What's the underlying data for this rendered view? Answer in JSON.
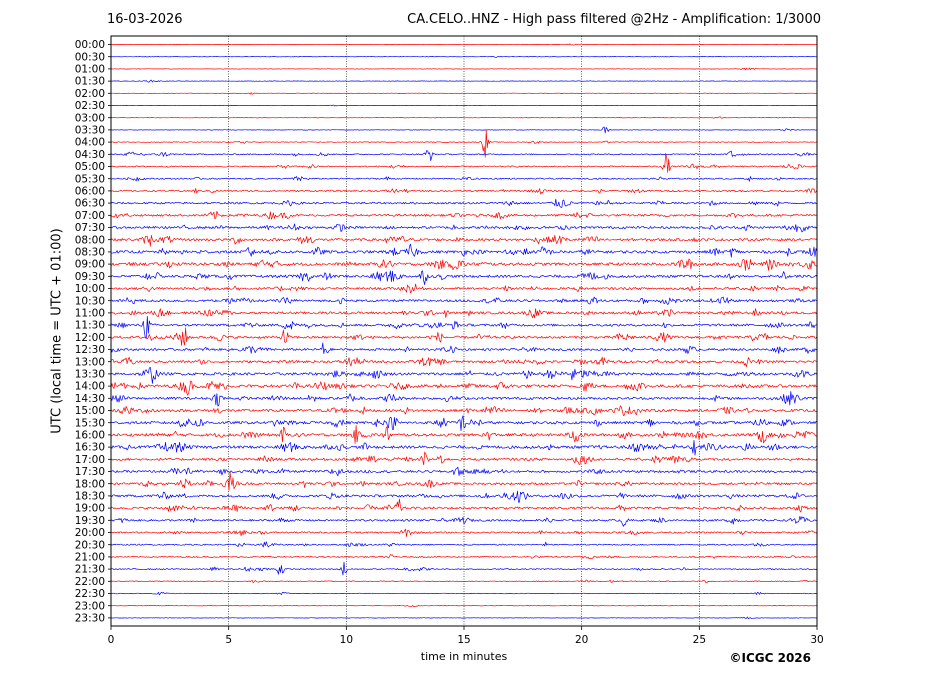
{
  "header": {
    "date": "16-03-2026",
    "title": "CA.CELO..HNZ - High pass filtered @2Hz - Amplification: 1/3000"
  },
  "footer": {
    "copyright": "©ICGC 2026"
  },
  "colors": {
    "blue": "#0000ff",
    "red": "#ff0000",
    "grid": "#000000"
  },
  "chart_data": {
    "type": "line",
    "title": "CA.CELO..HNZ - High pass filtered @2Hz - Amplification: 1/3000",
    "xlabel": "time in minutes",
    "ylabel": "UTC (local time = UTC + 01:00)",
    "xlim": [
      0,
      30
    ],
    "xticks": [
      0,
      5,
      10,
      15,
      20,
      25,
      30
    ],
    "vertical_gridlines_at": [
      5,
      10,
      15,
      20,
      25
    ],
    "grid": "dotted vertical",
    "row_labels": [
      "00:00",
      "00:30",
      "01:00",
      "01:30",
      "02:00",
      "02:30",
      "03:00",
      "03:30",
      "04:00",
      "04:30",
      "05:00",
      "05:30",
      "06:00",
      "06:30",
      "07:00",
      "07:30",
      "08:00",
      "08:30",
      "09:00",
      "09:30",
      "10:00",
      "10:30",
      "11:00",
      "11:30",
      "12:00",
      "12:30",
      "13:00",
      "13:30",
      "14:00",
      "14:30",
      "15:00",
      "15:30",
      "16:00",
      "16:30",
      "17:00",
      "17:30",
      "18:00",
      "18:30",
      "19:00",
      "19:30",
      "20:00",
      "20:30",
      "21:00",
      "21:30",
      "22:00",
      "22:30",
      "23:00",
      "23:30"
    ],
    "trace_colors_alternating": [
      "red",
      "blue"
    ],
    "first_trace_color": "red",
    "activity_levels": [
      0.03,
      0.03,
      0.03,
      0.03,
      0.04,
      0.03,
      0.03,
      0.05,
      0.12,
      0.28,
      0.3,
      0.32,
      0.38,
      0.48,
      0.55,
      0.62,
      0.7,
      0.75,
      0.8,
      0.7,
      0.6,
      0.62,
      0.65,
      0.62,
      0.66,
      0.58,
      0.65,
      0.72,
      0.8,
      0.65,
      0.7,
      0.72,
      0.78,
      0.8,
      0.65,
      0.6,
      0.58,
      0.62,
      0.6,
      0.48,
      0.42,
      0.3,
      0.28,
      0.25,
      0.18,
      0.1,
      0.05,
      0.03
    ],
    "events": [
      {
        "row": "03:30",
        "minute": 21.0,
        "amplitude": 0.5
      },
      {
        "row": "04:00",
        "minute": 15.9,
        "amplitude": 1.5
      },
      {
        "row": "04:30",
        "minute": 13.5,
        "amplitude": 1.0
      },
      {
        "row": "04:30",
        "minute": 26.4,
        "amplitude": 1.0
      },
      {
        "row": "05:00",
        "minute": 23.6,
        "amplitude": 1.5
      },
      {
        "row": "08:30",
        "minute": 5.9,
        "amplitude": 0.9
      },
      {
        "row": "09:30",
        "minute": 13.3,
        "amplitude": 0.8
      },
      {
        "row": "11:30",
        "minute": 1.5,
        "amplitude": 1.5
      },
      {
        "row": "12:00",
        "minute": 3.1,
        "amplitude": 1.0
      },
      {
        "row": "12:00",
        "minute": 7.4,
        "amplitude": 1.0
      },
      {
        "row": "12:30",
        "minute": 9.1,
        "amplitude": 1.3
      },
      {
        "row": "13:30",
        "minute": 19.6,
        "amplitude": 0.7
      },
      {
        "row": "14:00",
        "minute": 3.3,
        "amplitude": 1.0
      },
      {
        "row": "16:00",
        "minute": 5.7,
        "amplitude": 0.8
      },
      {
        "row": "16:00",
        "minute": 7.3,
        "amplitude": 0.8
      },
      {
        "row": "16:00",
        "minute": 10.4,
        "amplitude": 0.8
      },
      {
        "row": "16:00",
        "minute": 11.7,
        "amplitude": 0.8
      },
      {
        "row": "16:30",
        "minute": 24.8,
        "amplitude": 0.9
      },
      {
        "row": "18:00",
        "minute": 5.1,
        "amplitude": 1.2
      },
      {
        "row": "19:00",
        "minute": 12.2,
        "amplitude": 1.0
      },
      {
        "row": "19:30",
        "minute": 21.8,
        "amplitude": 0.7
      },
      {
        "row": "20:30",
        "minute": 5.5,
        "amplitude": 0.6
      },
      {
        "row": "21:30",
        "minute": 7.2,
        "amplitude": 1.0
      },
      {
        "row": "21:30",
        "minute": 9.9,
        "amplitude": 0.8
      }
    ]
  }
}
